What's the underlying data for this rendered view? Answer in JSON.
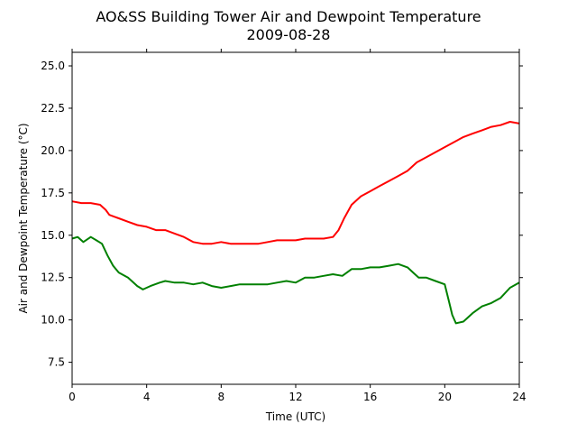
{
  "chart_data": {
    "type": "line",
    "title": "AO&SS Building Tower Air and Dewpoint Temperature",
    "subtitle": "2009-08-28",
    "xlabel": "Time (UTC)",
    "ylabel": "Air and Dewpoint Temperature (°C)",
    "xlim": [
      0,
      24
    ],
    "ylim": [
      6.2,
      25.8
    ],
    "x_ticks": [
      0,
      4,
      8,
      12,
      16,
      20,
      24
    ],
    "x_tick_labels": [
      "0",
      "4",
      "8",
      "12",
      "16",
      "20",
      "24"
    ],
    "y_ticks": [
      7.5,
      10.0,
      12.5,
      15.0,
      17.5,
      20.0,
      22.5,
      25.0
    ],
    "y_tick_labels": [
      "7.5",
      "10.0",
      "12.5",
      "15.0",
      "17.5",
      "20.0",
      "22.5",
      "25.0"
    ],
    "grid": false,
    "series": [
      {
        "color": "#ff0000",
        "x": [
          0,
          0.5,
          1,
          1.5,
          1.8,
          2,
          2.5,
          3,
          3.5,
          4,
          4.5,
          5,
          5.5,
          6,
          6.5,
          7,
          7.5,
          8,
          8.5,
          9,
          9.5,
          10,
          10.5,
          11,
          11.5,
          12,
          12.5,
          13,
          13.5,
          14,
          14.3,
          14.6,
          15,
          15.5,
          16,
          16.5,
          17,
          17.5,
          18,
          18.5,
          19,
          19.5,
          20,
          20.5,
          21,
          21.5,
          22,
          22.5,
          23,
          23.5,
          24
        ],
        "y": [
          17.0,
          16.9,
          16.9,
          16.8,
          16.5,
          16.2,
          16.0,
          15.8,
          15.6,
          15.5,
          15.3,
          15.3,
          15.1,
          14.9,
          14.6,
          14.5,
          14.5,
          14.6,
          14.5,
          14.5,
          14.5,
          14.5,
          14.6,
          14.7,
          14.7,
          14.7,
          14.8,
          14.8,
          14.8,
          14.9,
          15.3,
          16.0,
          16.8,
          17.3,
          17.6,
          17.9,
          18.2,
          18.5,
          18.8,
          19.3,
          19.6,
          19.9,
          20.2,
          20.5,
          20.8,
          21.0,
          21.2,
          21.4,
          21.5,
          21.7,
          21.6
        ]
      },
      {
        "color": "#008000",
        "x": [
          0,
          0.3,
          0.6,
          1,
          1.3,
          1.6,
          1.9,
          2.2,
          2.5,
          3,
          3.5,
          3.8,
          4.2,
          4.7,
          5,
          5.5,
          6,
          6.5,
          7,
          7.5,
          8,
          8.5,
          9,
          9.5,
          10,
          10.5,
          11,
          11.5,
          12,
          12.5,
          13,
          13.5,
          14,
          14.5,
          15,
          15.5,
          16,
          16.5,
          17,
          17.5,
          18,
          18.3,
          18.6,
          19,
          19.5,
          20,
          20.2,
          20.4,
          20.6,
          21,
          21.5,
          22,
          22.5,
          23,
          23.5,
          24
        ],
        "y": [
          14.8,
          14.9,
          14.6,
          14.9,
          14.7,
          14.5,
          13.8,
          13.2,
          12.8,
          12.5,
          12.0,
          11.8,
          12.0,
          12.2,
          12.3,
          12.2,
          12.2,
          12.1,
          12.2,
          12.0,
          11.9,
          12.0,
          12.1,
          12.1,
          12.1,
          12.1,
          12.2,
          12.3,
          12.2,
          12.5,
          12.5,
          12.6,
          12.7,
          12.6,
          13.0,
          13.0,
          13.1,
          13.1,
          13.2,
          13.3,
          13.1,
          12.8,
          12.5,
          12.5,
          12.3,
          12.1,
          11.2,
          10.3,
          9.8,
          9.9,
          10.4,
          10.8,
          11.0,
          11.3,
          11.9,
          12.2
        ]
      }
    ]
  }
}
